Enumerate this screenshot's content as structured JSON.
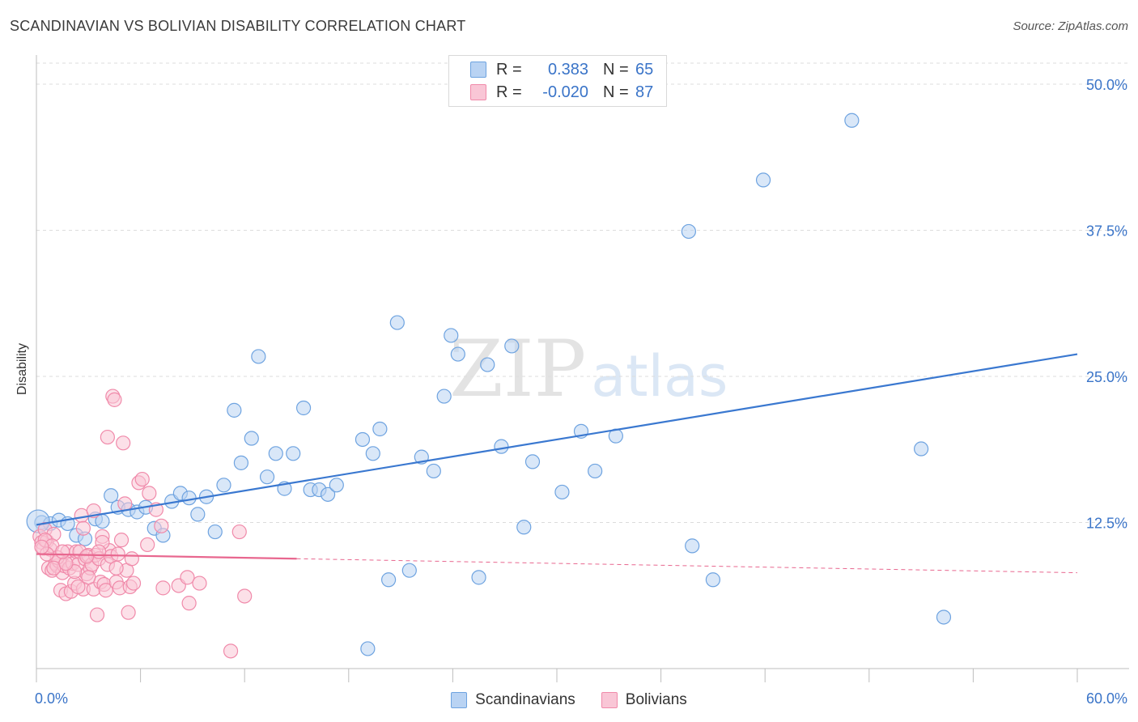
{
  "chart_data": {
    "type": "scatter",
    "title": "SCANDINAVIAN VS BOLIVIAN DISABILITY CORRELATION CHART",
    "source": "Source: ZipAtlas.com",
    "ylabel": "Disability",
    "xlabel": "",
    "xlim": [
      0,
      60
    ],
    "ylim": [
      0,
      51.8
    ],
    "x_tick_labels": [
      "0.0%",
      "60.0%"
    ],
    "y_ticks": [
      12.5,
      25.0,
      37.5,
      50.0
    ],
    "y_tick_labels": [
      "12.5%",
      "25.0%",
      "37.5%",
      "50.0%"
    ],
    "watermark": {
      "zip": "ZIP",
      "atlas": "atlas"
    },
    "legend": [
      {
        "name": "Scandinavians",
        "r_label": "R =",
        "r_value": "0.383",
        "n_label": "N =",
        "n_value": "65",
        "color": "#6ea3e0",
        "fill": "#b9d3f3"
      },
      {
        "name": "Bolivians",
        "r_label": "R =",
        "r_value": "-0.020",
        "n_label": "N =",
        "n_value": "87",
        "color": "#f08aaa",
        "fill": "#f9c6d6"
      }
    ],
    "series": [
      {
        "name": "Scandinavians",
        "color": "#6ea3e0",
        "fill": "#b9d3f3",
        "trend": {
          "x": [
            0,
            60
          ],
          "y": [
            12.3,
            26.9
          ],
          "color": "#3a78d0"
        },
        "points": [
          [
            0.3,
            12.5
          ],
          [
            0.8,
            12.4
          ],
          [
            1.3,
            12.7
          ],
          [
            1.8,
            12.4
          ],
          [
            2.3,
            11.4
          ],
          [
            2.8,
            11.1
          ],
          [
            3.4,
            12.8
          ],
          [
            3.8,
            12.6
          ],
          [
            4.3,
            14.8
          ],
          [
            4.7,
            13.8
          ],
          [
            5.3,
            13.6
          ],
          [
            5.8,
            13.4
          ],
          [
            6.3,
            13.8
          ],
          [
            6.8,
            12.0
          ],
          [
            7.3,
            11.4
          ],
          [
            7.8,
            14.3
          ],
          [
            8.3,
            15.0
          ],
          [
            8.8,
            14.6
          ],
          [
            9.3,
            13.2
          ],
          [
            9.8,
            14.7
          ],
          [
            10.3,
            11.7
          ],
          [
            10.8,
            15.7
          ],
          [
            11.4,
            22.1
          ],
          [
            11.8,
            17.6
          ],
          [
            12.4,
            19.7
          ],
          [
            12.8,
            26.7
          ],
          [
            13.3,
            16.4
          ],
          [
            13.8,
            18.4
          ],
          [
            14.3,
            15.4
          ],
          [
            14.8,
            18.4
          ],
          [
            15.4,
            22.3
          ],
          [
            15.8,
            15.3
          ],
          [
            16.3,
            15.3
          ],
          [
            16.8,
            14.9
          ],
          [
            17.3,
            15.7
          ],
          [
            18.8,
            19.6
          ],
          [
            19.1,
            1.7
          ],
          [
            19.4,
            18.4
          ],
          [
            19.8,
            20.5
          ],
          [
            20.3,
            7.6
          ],
          [
            20.8,
            29.6
          ],
          [
            21.5,
            8.4
          ],
          [
            22.2,
            18.1
          ],
          [
            22.9,
            16.9
          ],
          [
            23.5,
            23.3
          ],
          [
            23.9,
            28.5
          ],
          [
            24.3,
            26.9
          ],
          [
            25.5,
            7.8
          ],
          [
            26.0,
            26.0
          ],
          [
            26.8,
            19.0
          ],
          [
            27.4,
            27.6
          ],
          [
            28.1,
            12.1
          ],
          [
            28.6,
            17.7
          ],
          [
            30.3,
            15.1
          ],
          [
            31.4,
            20.3
          ],
          [
            32.2,
            16.9
          ],
          [
            33.4,
            19.9
          ],
          [
            37.6,
            37.4
          ],
          [
            37.8,
            10.5
          ],
          [
            39.0,
            7.6
          ],
          [
            41.9,
            41.8
          ],
          [
            47.0,
            46.9
          ],
          [
            51.0,
            18.8
          ],
          [
            52.3,
            4.4
          ],
          [
            0.1,
            12.6
          ]
        ]
      },
      {
        "name": "Bolivians",
        "color": "#f08aaa",
        "fill": "#f9c6d6",
        "trend": {
          "x": [
            0,
            60
          ],
          "y": [
            9.8,
            8.2
          ],
          "solid_until": 15.0,
          "color": "#e8678f"
        },
        "points": [
          [
            0.2,
            11.3
          ],
          [
            0.3,
            10.8
          ],
          [
            0.4,
            10.3
          ],
          [
            0.5,
            11.9
          ],
          [
            0.6,
            10.9
          ],
          [
            0.7,
            8.6
          ],
          [
            0.8,
            10.2
          ],
          [
            0.9,
            8.4
          ],
          [
            1.0,
            11.5
          ],
          [
            1.1,
            9.0
          ],
          [
            1.2,
            8.8
          ],
          [
            1.3,
            9.2
          ],
          [
            1.4,
            6.7
          ],
          [
            1.5,
            8.2
          ],
          [
            1.6,
            8.8
          ],
          [
            1.7,
            6.4
          ],
          [
            1.8,
            10.0
          ],
          [
            1.9,
            8.6
          ],
          [
            2.0,
            6.6
          ],
          [
            2.1,
            9.0
          ],
          [
            2.2,
            7.3
          ],
          [
            2.3,
            10.0
          ],
          [
            2.4,
            8.9
          ],
          [
            2.5,
            10.0
          ],
          [
            2.6,
            13.1
          ],
          [
            2.7,
            6.8
          ],
          [
            2.8,
            9.4
          ],
          [
            2.9,
            8.1
          ],
          [
            3.0,
            9.7
          ],
          [
            3.1,
            8.6
          ],
          [
            3.2,
            8.9
          ],
          [
            3.3,
            6.8
          ],
          [
            3.4,
            9.7
          ],
          [
            3.5,
            4.6
          ],
          [
            3.6,
            9.4
          ],
          [
            3.7,
            7.4
          ],
          [
            3.8,
            11.3
          ],
          [
            3.9,
            7.2
          ],
          [
            4.0,
            6.7
          ],
          [
            4.1,
            8.9
          ],
          [
            4.2,
            10.1
          ],
          [
            4.3,
            9.6
          ],
          [
            4.4,
            23.3
          ],
          [
            4.5,
            23.0
          ],
          [
            4.6,
            7.4
          ],
          [
            4.7,
            9.8
          ],
          [
            4.8,
            6.9
          ],
          [
            4.9,
            11.0
          ],
          [
            5.0,
            19.3
          ],
          [
            5.1,
            14.1
          ],
          [
            5.2,
            8.4
          ],
          [
            5.3,
            4.8
          ],
          [
            5.4,
            7.0
          ],
          [
            5.5,
            9.4
          ],
          [
            5.6,
            7.3
          ],
          [
            5.9,
            15.9
          ],
          [
            6.1,
            16.2
          ],
          [
            6.4,
            10.6
          ],
          [
            6.5,
            15.0
          ],
          [
            6.9,
            13.6
          ],
          [
            7.2,
            12.2
          ],
          [
            7.3,
            6.9
          ],
          [
            8.2,
            7.1
          ],
          [
            8.7,
            7.8
          ],
          [
            8.8,
            5.6
          ],
          [
            9.4,
            7.3
          ],
          [
            11.2,
            1.5
          ],
          [
            11.7,
            11.7
          ],
          [
            12.0,
            6.2
          ],
          [
            4.1,
            19.8
          ],
          [
            0.5,
            11.0
          ],
          [
            0.9,
            10.5
          ],
          [
            1.2,
            9.5
          ],
          [
            2.7,
            12.0
          ],
          [
            3.3,
            13.5
          ],
          [
            1.0,
            8.6
          ],
          [
            2.2,
            8.3
          ],
          [
            0.6,
            9.8
          ],
          [
            1.7,
            9.0
          ],
          [
            2.4,
            7.0
          ],
          [
            3.0,
            7.8
          ],
          [
            3.8,
            10.8
          ],
          [
            4.6,
            8.6
          ],
          [
            0.3,
            10.4
          ],
          [
            1.5,
            10.0
          ],
          [
            2.9,
            9.6
          ],
          [
            3.6,
            10.0
          ]
        ]
      }
    ]
  }
}
